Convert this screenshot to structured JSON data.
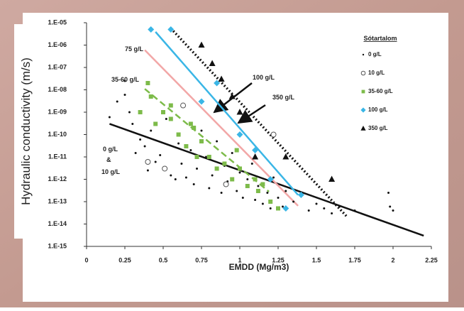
{
  "chart_data": {
    "type": "scatter",
    "x_label": "EMDD (Mg/m3)",
    "y_label": "Hydraulic conductivity (m/s)",
    "xlim": [
      0,
      2.25
    ],
    "xticks": [
      0,
      0.25,
      0.5,
      0.75,
      1,
      1.25,
      1.5,
      1.75,
      2,
      2.25
    ],
    "ylim": [
      1e-15,
      1e-05
    ],
    "y_scale": "log",
    "yticks": [
      {
        "value": 1e-05,
        "label": "1.E-05"
      },
      {
        "value": 1e-06,
        "label": "1.E-06"
      },
      {
        "value": 1e-07,
        "label": "1.E-07"
      },
      {
        "value": 1e-08,
        "label": "1.E-08"
      },
      {
        "value": 1e-09,
        "label": "1.E-09"
      },
      {
        "value": 1e-10,
        "label": "1.E-10"
      },
      {
        "value": 1e-11,
        "label": "1.E-11"
      },
      {
        "value": 1e-12,
        "label": "1.E-12"
      },
      {
        "value": 1e-13,
        "label": "1.E-13"
      },
      {
        "value": 1e-14,
        "label": "1.E-14"
      },
      {
        "value": 1e-15,
        "label": "1.E-15"
      }
    ],
    "grid": false,
    "legend_title": "Sótartalom",
    "legend_position": "upper-right",
    "series": [
      {
        "name": "0 g/L",
        "color": "#111111",
        "marker": "dot",
        "x": [
          0.15,
          0.2,
          0.25,
          0.25,
          0.28,
          0.3,
          0.32,
          0.35,
          0.38,
          0.4,
          0.42,
          0.45,
          0.48,
          0.5,
          0.52,
          0.55,
          0.58,
          0.6,
          0.62,
          0.65,
          0.68,
          0.7,
          0.72,
          0.75,
          0.78,
          0.8,
          0.82,
          0.85,
          0.88,
          0.9,
          0.92,
          0.95,
          0.98,
          1.0,
          1.02,
          1.05,
          1.08,
          1.1,
          1.12,
          1.15,
          1.18,
          1.2,
          1.22,
          1.25,
          1.28,
          1.3,
          1.35,
          1.4,
          1.45,
          1.5,
          1.55,
          1.6,
          1.65,
          1.75,
          1.97,
          1.98,
          2.0
        ],
        "values": [
          6e-10,
          3e-09,
          2.5e-08,
          6e-09,
          1e-09,
          3e-10,
          1.5e-11,
          6e-11,
          3e-11,
          2.5e-12,
          1.5e-10,
          6e-12,
          1.2e-11,
          3e-12,
          5e-10,
          1.5e-12,
          1e-12,
          4e-11,
          5e-12,
          1.2e-12,
          2e-11,
          6e-13,
          3e-12,
          1.5e-10,
          1e-11,
          4e-13,
          1.5e-12,
          5e-11,
          2.5e-13,
          4e-12,
          8e-13,
          1.5e-11,
          3e-13,
          2e-12,
          1.5e-13,
          1e-12,
          5e-12,
          1.2e-13,
          5e-13,
          8e-14,
          2.5e-13,
          5e-14,
          1.2e-12,
          1.5e-13,
          6e-14,
          3e-13,
          1e-13,
          2e-13,
          4e-14,
          8e-14,
          5e-14,
          3e-14,
          6e-14,
          4e-14,
          2.5e-13,
          6e-14,
          4e-14
        ]
      },
      {
        "name": "10 g/L",
        "color": "#555555",
        "marker": "circle",
        "x": [
          0.4,
          0.51,
          0.63,
          0.91,
          1.22
        ],
        "values": [
          6e-12,
          3e-12,
          2e-09,
          6e-13,
          1e-10
        ]
      },
      {
        "name": "35-60 g/L",
        "color": "#7dbb4a",
        "marker": "square",
        "x": [
          0.35,
          0.4,
          0.42,
          0.45,
          0.5,
          0.55,
          0.6,
          0.65,
          0.7,
          0.72,
          0.75,
          0.8,
          0.85,
          0.9,
          0.95,
          1.0,
          1.05,
          1.1,
          1.12,
          1.15,
          1.2,
          1.25,
          0.55,
          0.68,
          0.98
        ],
        "values": [
          1e-09,
          2e-08,
          5e-09,
          3e-10,
          1e-09,
          5e-10,
          1e-10,
          3e-11,
          2e-10,
          1e-11,
          5e-11,
          1e-11,
          3e-12,
          5e-12,
          1e-12,
          3e-12,
          5e-13,
          1e-12,
          3e-13,
          6e-13,
          1e-13,
          5e-14,
          2e-09,
          3e-10,
          2e-11
        ]
      },
      {
        "name": "100 g/L",
        "color": "#3ab6e6",
        "marker": "diamond",
        "x": [
          0.42,
          0.55,
          0.75,
          0.85,
          1.0,
          1.1,
          1.2,
          1.3,
          1.4
        ],
        "values": [
          5e-06,
          5e-06,
          3e-09,
          2e-08,
          1e-10,
          2e-11,
          1e-12,
          5e-14,
          2e-13
        ]
      },
      {
        "name": "350 g/L",
        "color": "#111111",
        "marker": "triangle",
        "x": [
          0.75,
          0.82,
          0.88,
          0.95,
          1.0,
          1.05,
          1.1,
          1.3,
          1.6
        ],
        "values": [
          1e-06,
          1.5e-07,
          3e-08,
          5e-09,
          1e-09,
          5e-10,
          1e-11,
          1e-11,
          1e-12
        ]
      }
    ],
    "trendlines": [
      {
        "color": "#111111",
        "dash": "solid",
        "x": [
          0.15,
          2.2
        ],
        "y": [
          3e-10,
          3e-15
        ]
      },
      {
        "color": "#7dbb4a",
        "dash": "dashed",
        "x": [
          0.38,
          1.19
        ],
        "y": [
          1.1e-08,
          2.8e-13
        ]
      },
      {
        "color": "#f2a7a7",
        "dash": "solid",
        "x": [
          0.38,
          1.38
        ],
        "y": [
          6e-07,
          6.5e-14
        ]
      },
      {
        "color": "#3ab6e6",
        "dash": "solid",
        "x": [
          0.45,
          1.38
        ],
        "y": [
          3.9e-06,
          2e-13
        ]
      },
      {
        "color": "#111111",
        "dash": "dotted",
        "x": [
          0.55,
          1.7
        ],
        "y": [
          5.6e-06,
          2.1e-14
        ]
      }
    ],
    "annotations": [
      "75 g/L",
      "100 g/L",
      "350 g/L",
      "35-60 g/L",
      "0 g/L",
      "&",
      "10 g/L"
    ]
  }
}
